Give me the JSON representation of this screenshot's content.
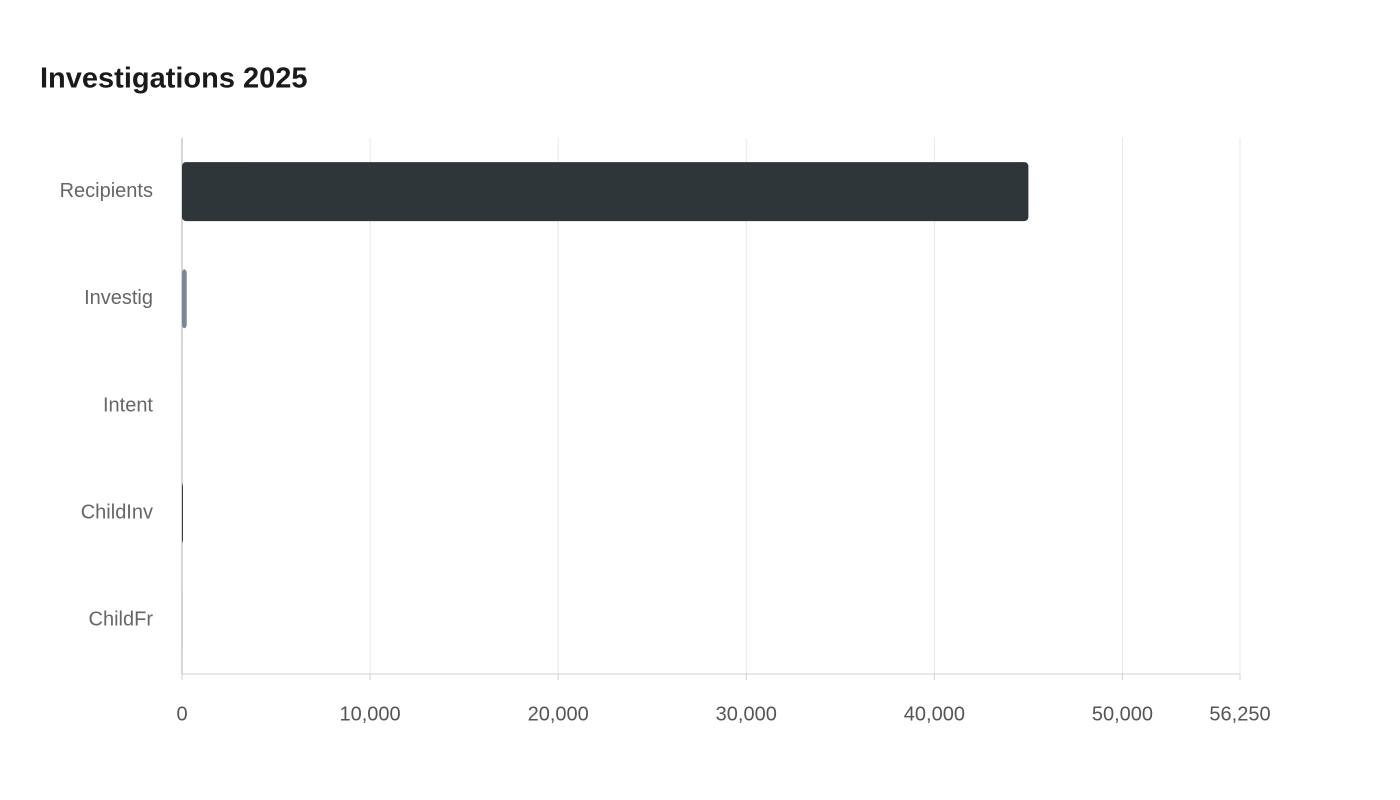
{
  "chart_data": {
    "type": "hbar",
    "title": "Investigations 2025",
    "categories": [
      "Recipients",
      "Investig",
      "Intent",
      "ChildInv",
      "ChildFr"
    ],
    "values": [
      45000,
      250,
      50,
      20,
      10
    ],
    "colors": [
      "#2f3639",
      "#7b8696",
      "#d9dbde",
      "#3a4146",
      "#c9ced6"
    ],
    "xlim": [
      0,
      56250
    ],
    "xticks": [
      0,
      {
        "value": 10000,
        "label": "10,000"
      },
      {
        "value": 20000,
        "label": "20,000"
      },
      {
        "value": 30000,
        "label": "30,000"
      },
      {
        "value": 40000,
        "label": "40,000"
      },
      {
        "value": 50000,
        "label": "50,000"
      },
      {
        "value": 56250,
        "label": "56,250"
      }
    ],
    "grid": true
  }
}
